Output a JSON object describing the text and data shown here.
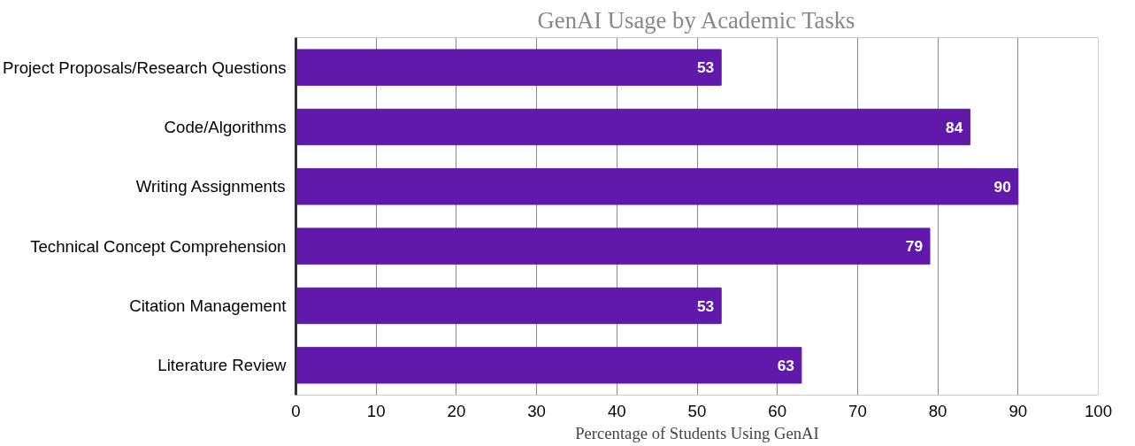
{
  "chart_data": {
    "type": "bar",
    "orientation": "horizontal",
    "title": "GenAI Usage by Academic Tasks",
    "xlabel": "Percentage of Students Using GenAI",
    "categories": [
      "Project Proposals/Research Questions",
      "Code/Algorithms",
      "Writing Assignments",
      "Technical Concept Comprehension",
      "Citation Management",
      "Literature Review"
    ],
    "values": [
      53,
      84,
      90,
      79,
      53,
      63
    ],
    "color": "#6119ab",
    "data_labels": true,
    "xlim": [
      0,
      100
    ],
    "xticks": [
      0,
      10,
      20,
      30,
      40,
      50,
      60,
      70,
      80,
      90,
      100
    ],
    "grid": "x"
  }
}
